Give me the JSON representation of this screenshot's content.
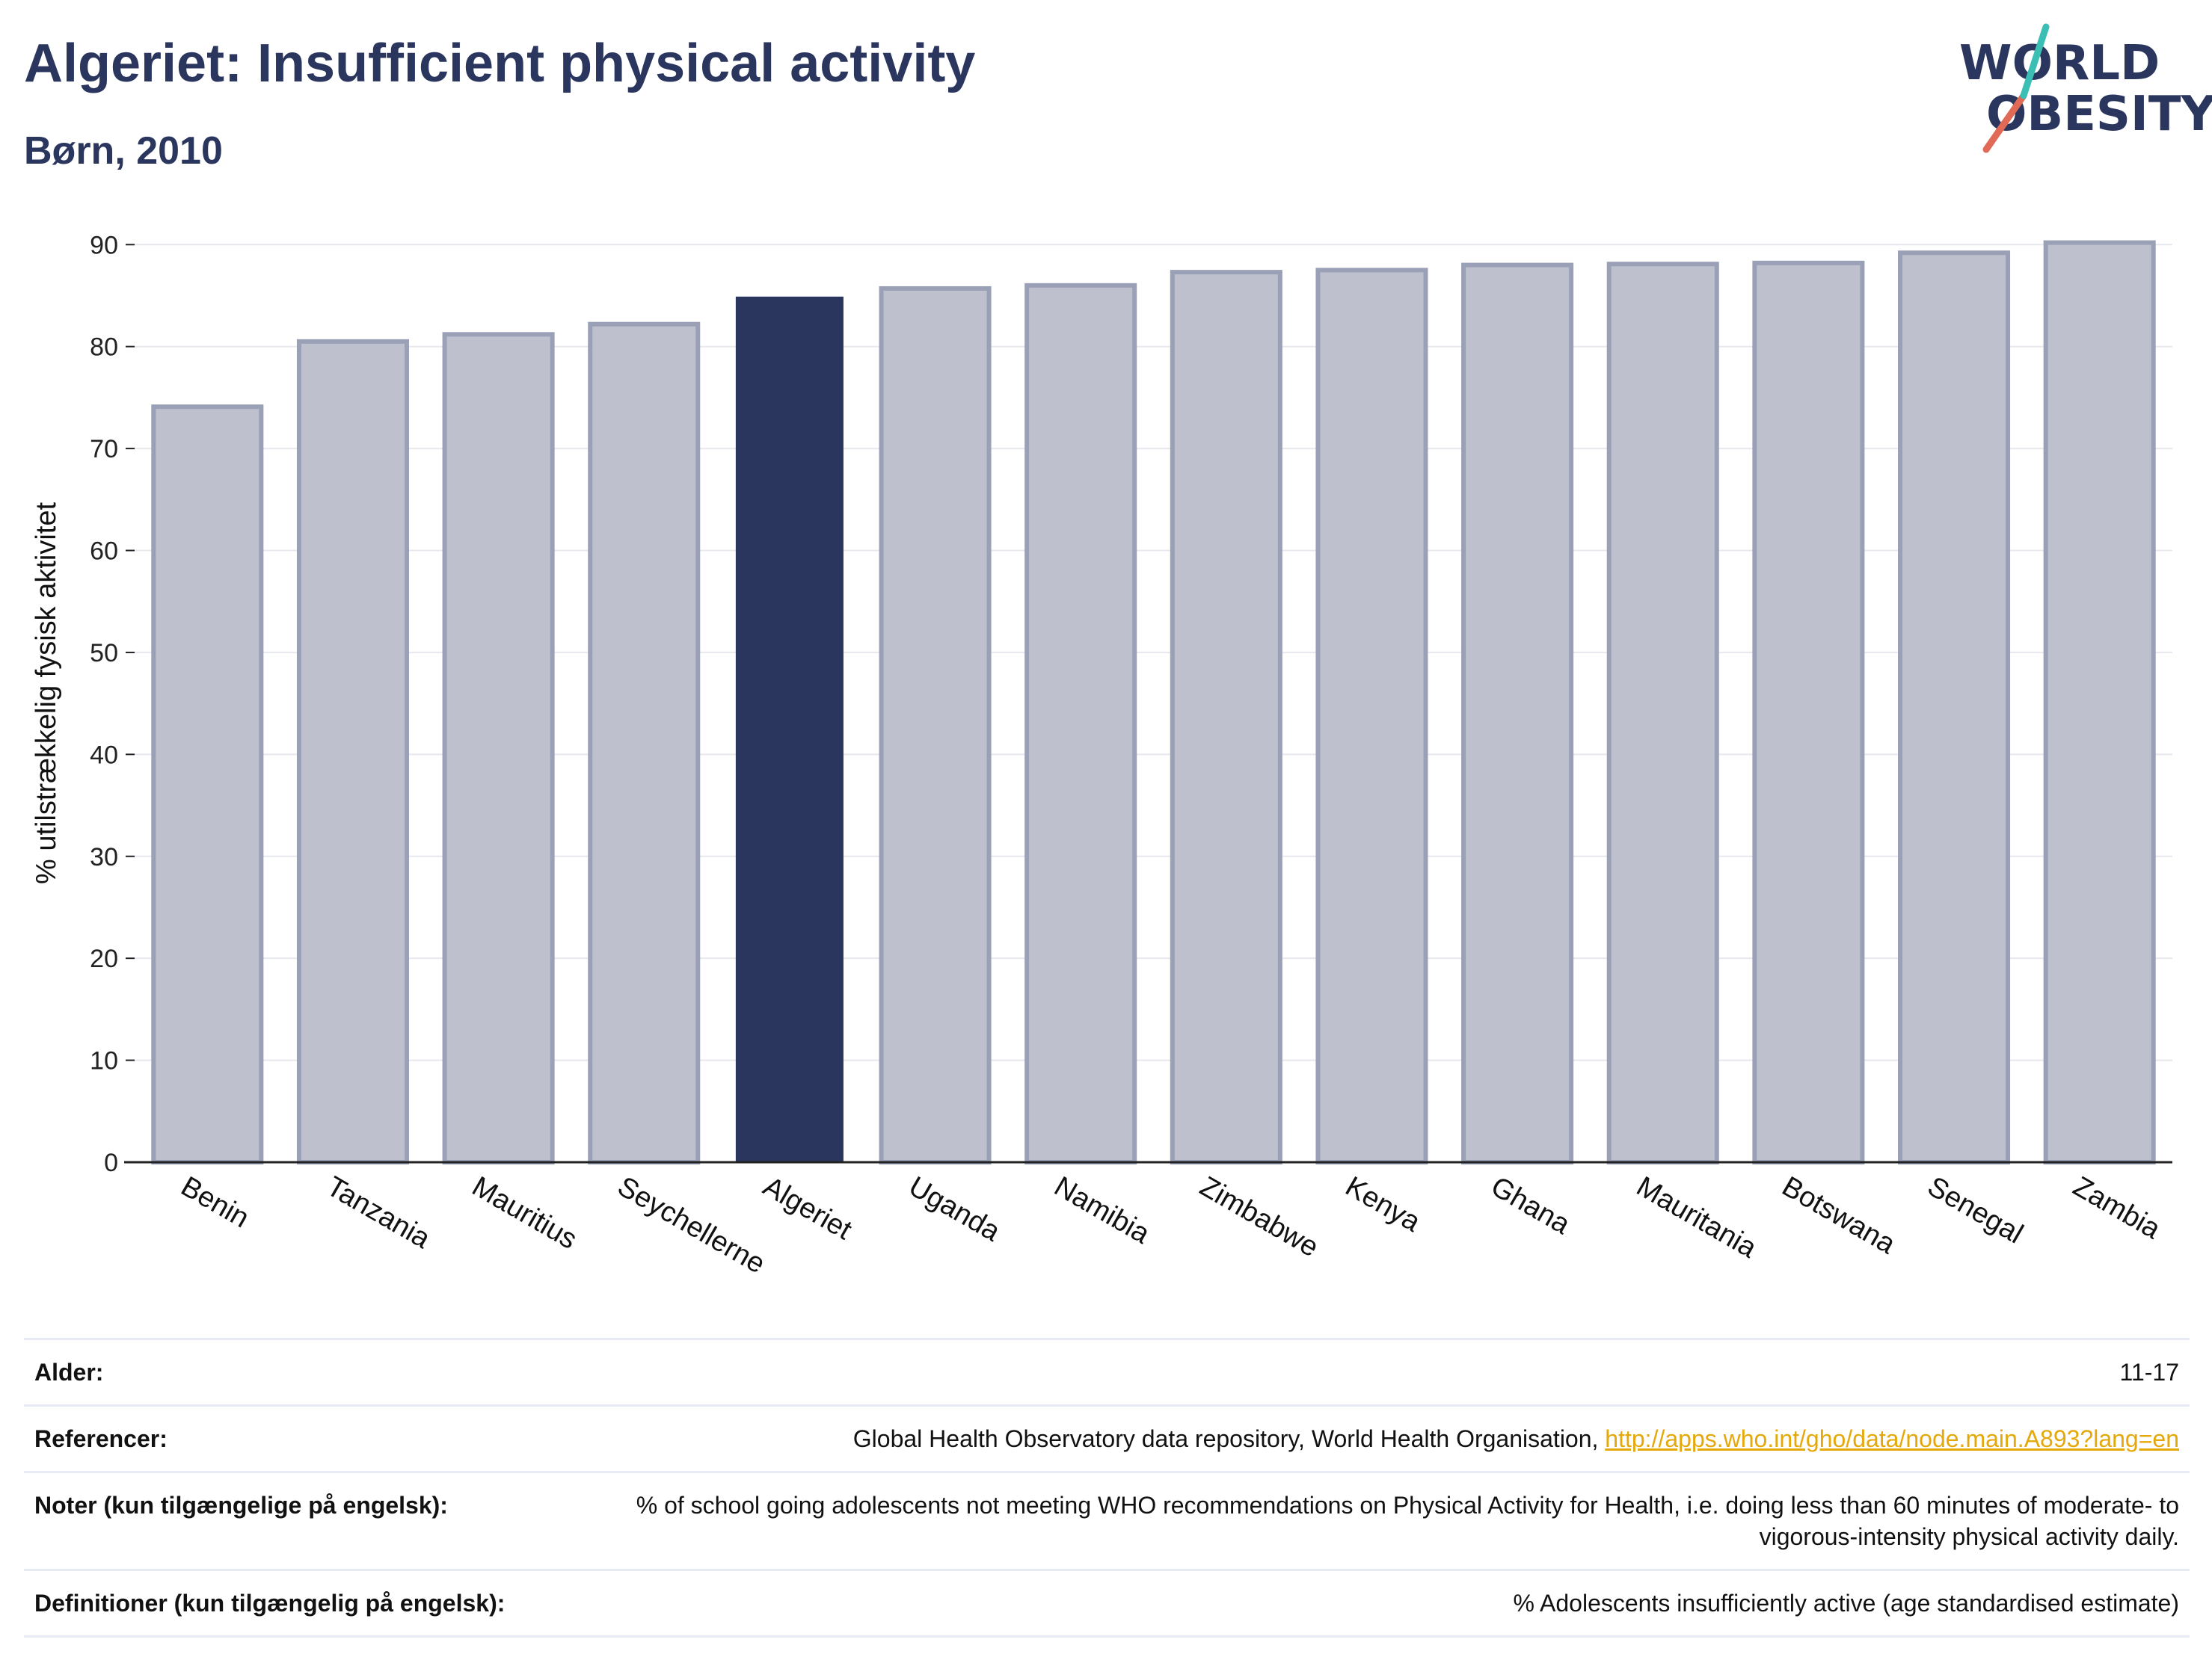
{
  "header": {
    "title": "Algeriet: Insufficient physical activity",
    "subtitle": "Børn, 2010",
    "logo_line1": "WORLD",
    "logo_line2": "OBESITY"
  },
  "colors": {
    "highlight": "#2b365f",
    "bar_fill": "#bec1cd",
    "bar_stroke": "#9aa0b6",
    "grid": "#e6e8ee",
    "axis": "#222222",
    "logo_red": "#e06a55",
    "logo_teal": "#3bbfb4",
    "link": "#e5a80a"
  },
  "chart_data": {
    "type": "bar",
    "title": "Algeriet: Insufficient physical activity",
    "subtitle": "Børn, 2010",
    "xlabel": "",
    "ylabel": "% utilstrækkelig fysisk aktivitet",
    "ylim": [
      0,
      92
    ],
    "yticks": [
      0,
      10,
      20,
      30,
      40,
      50,
      60,
      70,
      80,
      90
    ],
    "grid": true,
    "highlight": "Algeriet",
    "categories": [
      "Benin",
      "Tanzania",
      "Mauritius",
      "Seychellerne",
      "Algeriet",
      "Uganda",
      "Namibia",
      "Zimbabwe",
      "Kenya",
      "Ghana",
      "Mauritania",
      "Botswana",
      "Senegal",
      "Zambia"
    ],
    "values": [
      74.1,
      80.5,
      81.2,
      82.2,
      84.9,
      85.7,
      86.0,
      87.3,
      87.5,
      88.0,
      88.1,
      88.2,
      89.2,
      90.2
    ]
  },
  "meta": {
    "age_label": "Alder:",
    "age_value": "11-17",
    "ref_label": "Referencer:",
    "ref_text": "Global Health Observatory data repository, World Health Organisation,",
    "ref_link": "http://apps.who.int/gho/data/node.main.A893?lang=en",
    "notes_label": "Noter (kun tilgængelige på engelsk):",
    "notes_value": "% of school going adolescents not meeting WHO recommendations on Physical Activity for Health, i.e. doing less than 60 minutes of moderate- to vigorous-intensity physical activity daily.",
    "def_label": "Definitioner (kun tilgængelig på engelsk):",
    "def_value": "% Adolescents insufficiently active (age standardised estimate)"
  }
}
